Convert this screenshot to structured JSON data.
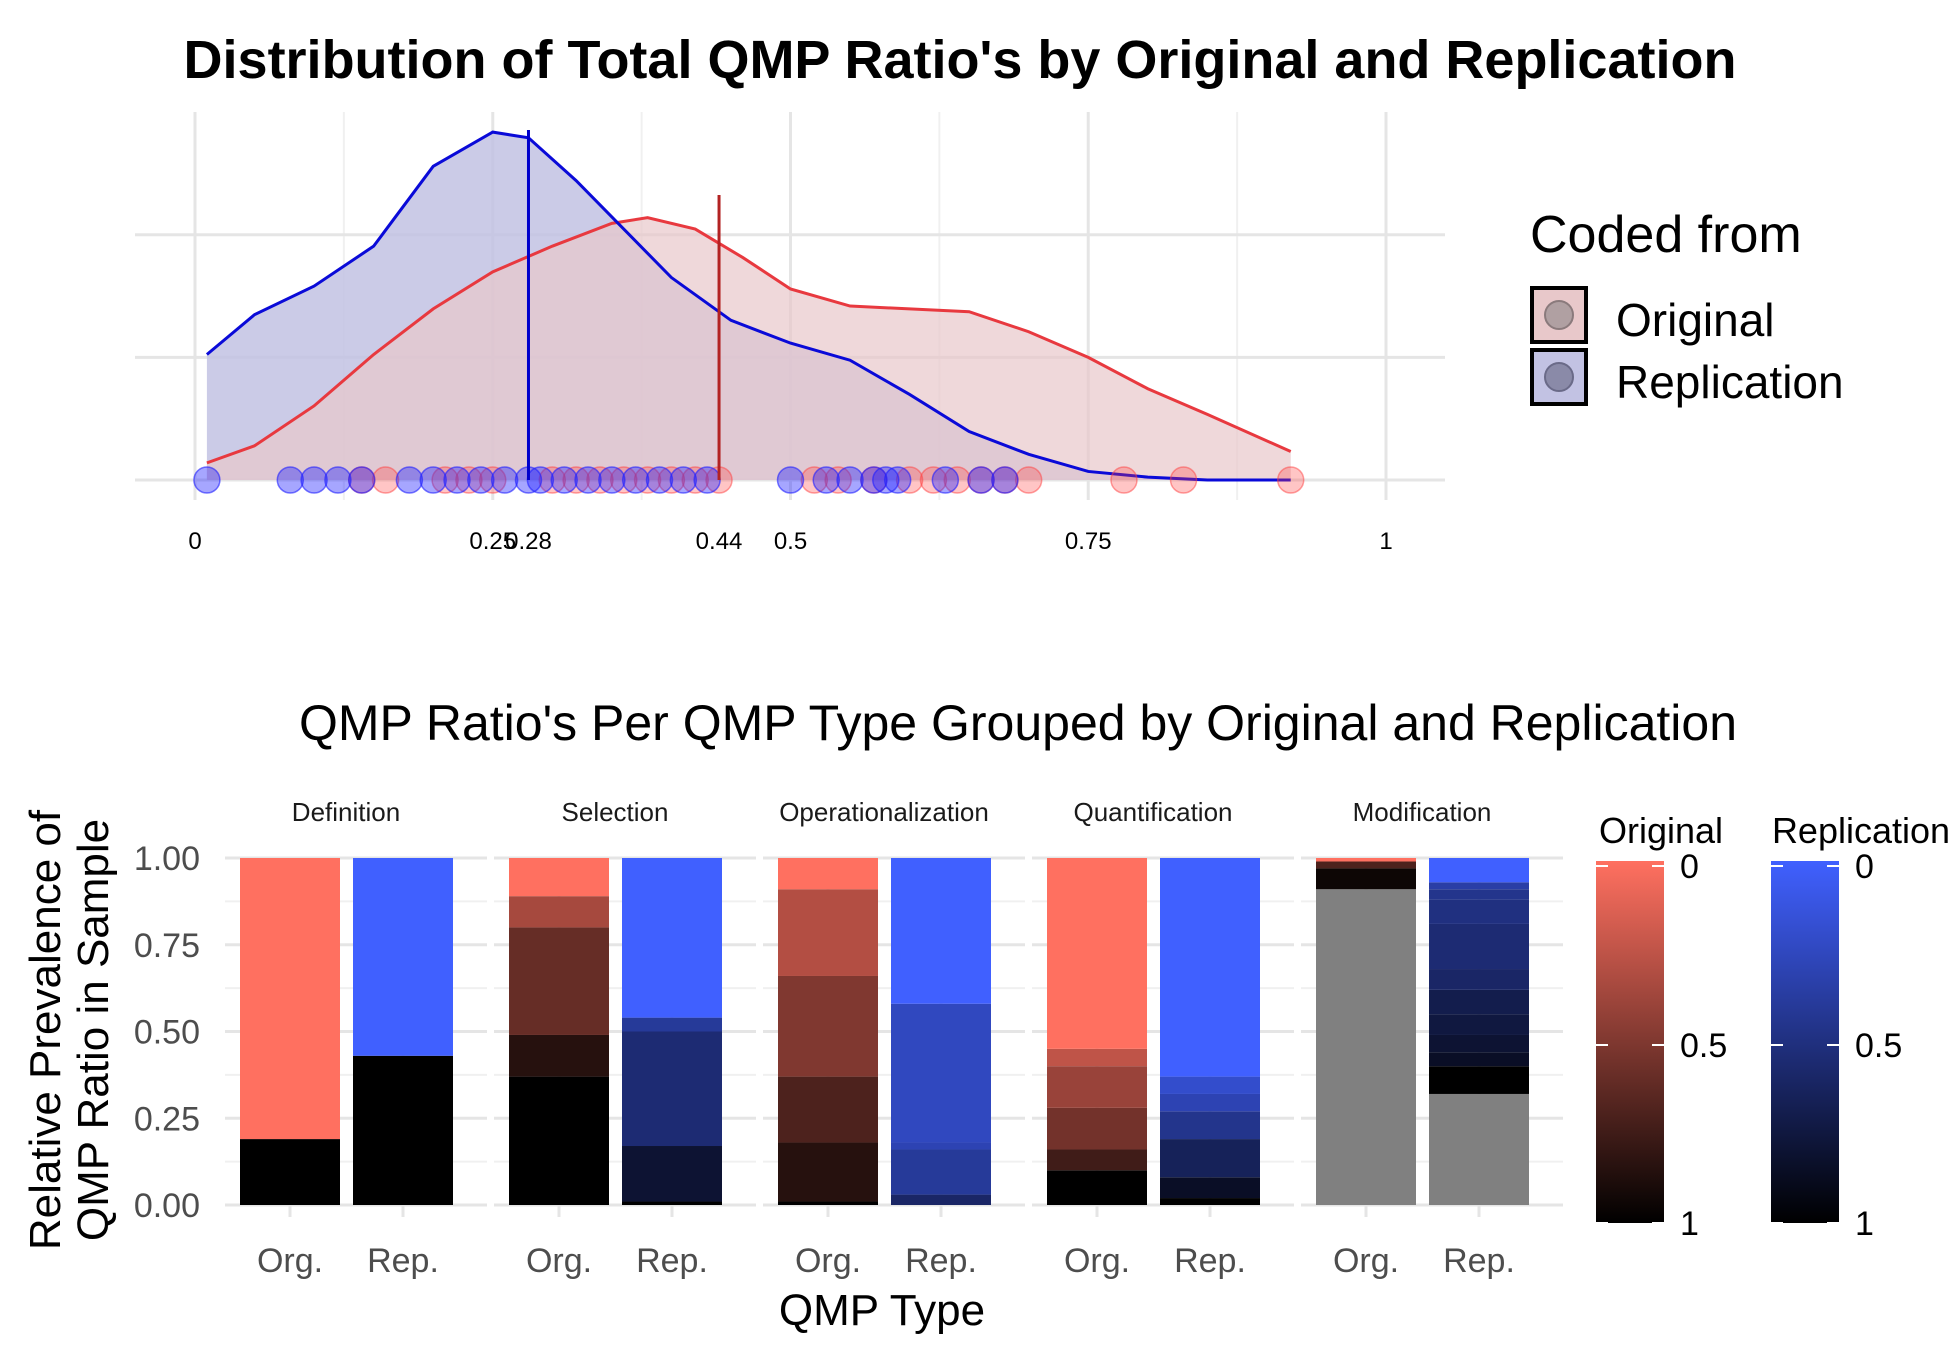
{
  "chart_data": [
    {
      "type": "area",
      "title": "Distribution of Total QMP Ratio's by Original and Replication",
      "xlim": [
        0,
        1
      ],
      "x_ticks": [
        "0",
        "0.25",
        "0.28",
        "0.44",
        "0.5",
        "0.75",
        "1"
      ],
      "x_tick_values": [
        0,
        0.25,
        0.28,
        0.44,
        0.5,
        0.75,
        1
      ],
      "ylabel": "",
      "xlabel": "",
      "grid": true,
      "legend": {
        "title": "Coded from",
        "position": "right",
        "entries": [
          "Original",
          "Replication"
        ]
      },
      "colors": {
        "original_line": "#e8393f",
        "original_fill": "#e8c8ca",
        "replication_line": "#0a0ad8",
        "replication_fill": "#c2c2e3",
        "overlap_fill": "#b8a8c8",
        "original_mean_line": "#b22222",
        "replication_mean_line": "#0000cc",
        "original_point": "#ff4040",
        "replication_point": "#2020ff"
      },
      "series": [
        {
          "name": "Original",
          "density": {
            "x": [
              0.01,
              0.05,
              0.1,
              0.15,
              0.2,
              0.25,
              0.3,
              0.35,
              0.38,
              0.42,
              0.46,
              0.5,
              0.55,
              0.6,
              0.65,
              0.7,
              0.75,
              0.8,
              0.85,
              0.92
            ],
            "y": [
              0.06,
              0.12,
              0.26,
              0.44,
              0.6,
              0.73,
              0.82,
              0.9,
              0.92,
              0.88,
              0.78,
              0.67,
              0.61,
              0.6,
              0.59,
              0.52,
              0.43,
              0.32,
              0.23,
              0.1
            ]
          },
          "mean": 0.44,
          "points": [
            0.14,
            0.16,
            0.21,
            0.23,
            0.25,
            0.3,
            0.32,
            0.34,
            0.36,
            0.38,
            0.4,
            0.42,
            0.44,
            0.52,
            0.54,
            0.57,
            0.6,
            0.62,
            0.64,
            0.66,
            0.68,
            0.7,
            0.78,
            0.83,
            0.92
          ]
        },
        {
          "name": "Replication",
          "density": {
            "x": [
              0.01,
              0.05,
              0.1,
              0.15,
              0.2,
              0.25,
              0.28,
              0.32,
              0.36,
              0.4,
              0.45,
              0.5,
              0.55,
              0.6,
              0.65,
              0.7,
              0.75,
              0.8,
              0.85,
              0.92
            ],
            "y": [
              0.44,
              0.58,
              0.68,
              0.82,
              1.1,
              1.22,
              1.2,
              1.05,
              0.88,
              0.71,
              0.56,
              0.48,
              0.42,
              0.3,
              0.17,
              0.09,
              0.03,
              0.01,
              0.0,
              0.0
            ]
          },
          "mean": 0.28,
          "points": [
            0.01,
            0.08,
            0.1,
            0.12,
            0.14,
            0.18,
            0.2,
            0.22,
            0.24,
            0.26,
            0.28,
            0.29,
            0.31,
            0.33,
            0.35,
            0.37,
            0.39,
            0.41,
            0.43,
            0.5,
            0.53,
            0.55,
            0.57,
            0.58,
            0.59,
            0.63,
            0.66,
            0.68
          ]
        }
      ]
    },
    {
      "type": "bar",
      "stacked": true,
      "title": "QMP Ratio's Per QMP Type Grouped by Original and Replication",
      "xlabel": "QMP Type",
      "ylabel": "Relative Prevalence of QMP Ratio in Sample",
      "ylim": [
        0,
        1
      ],
      "y_ticks": [
        "0.00",
        "0.25",
        "0.50",
        "0.75",
        "1.00"
      ],
      "y_tick_values": [
        0,
        0.25,
        0.5,
        0.75,
        1
      ],
      "categories": [
        "Org.",
        "Rep."
      ],
      "colorbars": [
        {
          "title": "Original",
          "low_color": "#000000",
          "high_color": "#ff7060",
          "labels": [
            "0",
            "0.5",
            "1"
          ]
        },
        {
          "title": "Replication",
          "low_color": "#000000",
          "high_color": "#4060ff",
          "labels": [
            "0",
            "0.5",
            "1"
          ]
        }
      ],
      "na_color": "#808080",
      "facets": [
        {
          "name": "Definition",
          "bars": [
            {
              "category": "Org.",
              "segments": [
                {
                  "ratio": 1,
                  "share": 0.19
                },
                {
                  "ratio": 0,
                  "share": 0.81
                }
              ]
            },
            {
              "category": "Rep.",
              "segments": [
                {
                  "ratio": 1,
                  "share": 0.43
                },
                {
                  "ratio": 0,
                  "share": 0.57
                }
              ]
            }
          ]
        },
        {
          "name": "Selection",
          "bars": [
            {
              "category": "Org.",
              "segments": [
                {
                  "ratio": 1,
                  "share": 0.37
                },
                {
                  "ratio": 0.85,
                  "share": 0.12
                },
                {
                  "ratio": 0.6,
                  "share": 0.31
                },
                {
                  "ratio": 0.35,
                  "share": 0.09
                },
                {
                  "ratio": 0,
                  "share": 0.11
                }
              ]
            },
            {
              "category": "Rep.",
              "segments": [
                {
                  "ratio": 1,
                  "share": 0.01
                },
                {
                  "ratio": 0.8,
                  "share": 0.16
                },
                {
                  "ratio": 0.55,
                  "share": 0.33
                },
                {
                  "ratio": 0.4,
                  "share": 0.04
                },
                {
                  "ratio": 0,
                  "share": 0.46
                }
              ]
            }
          ]
        },
        {
          "name": "Operationalization",
          "bars": [
            {
              "category": "Org.",
              "segments": [
                {
                  "ratio": 1,
                  "share": 0.01
                },
                {
                  "ratio": 0.85,
                  "share": 0.17
                },
                {
                  "ratio": 0.7,
                  "share": 0.19
                },
                {
                  "ratio": 0.5,
                  "share": 0.29
                },
                {
                  "ratio": 0.3,
                  "share": 0.25
                },
                {
                  "ratio": 0,
                  "share": 0.09
                }
              ]
            },
            {
              "category": "Rep.",
              "segments": [
                {
                  "ratio": 1,
                  "share": 0.0
                },
                {
                  "ratio": 0.6,
                  "share": 0.03
                },
                {
                  "ratio": 0.4,
                  "share": 0.13
                },
                {
                  "ratio": 0.3,
                  "share": 0.02
                },
                {
                  "ratio": 0.25,
                  "share": 0.4
                },
                {
                  "ratio": 0,
                  "share": 0.42
                }
              ]
            }
          ]
        },
        {
          "name": "Quantification",
          "bars": [
            {
              "category": "Org.",
              "segments": [
                {
                  "ratio": 1,
                  "share": 0.1
                },
                {
                  "ratio": 0.75,
                  "share": 0.06
                },
                {
                  "ratio": 0.55,
                  "share": 0.12
                },
                {
                  "ratio": 0.4,
                  "share": 0.12
                },
                {
                  "ratio": 0.25,
                  "share": 0.05
                },
                {
                  "ratio": 0,
                  "share": 0.55
                }
              ]
            },
            {
              "category": "Rep.",
              "segments": [
                {
                  "ratio": 1,
                  "share": 0.02
                },
                {
                  "ratio": 0.85,
                  "share": 0.06
                },
                {
                  "ratio": 0.65,
                  "share": 0.11
                },
                {
                  "ratio": 0.45,
                  "share": 0.08
                },
                {
                  "ratio": 0.3,
                  "share": 0.05
                },
                {
                  "ratio": 0.2,
                  "share": 0.05
                },
                {
                  "ratio": 0,
                  "share": 0.63
                }
              ]
            }
          ]
        },
        {
          "name": "Modification",
          "bars": [
            {
              "category": "Org.",
              "segments": [
                {
                  "ratio": null,
                  "share": 0.91
                },
                {
                  "ratio": 0.95,
                  "share": 0.06
                },
                {
                  "ratio": 0.7,
                  "share": 0.02
                },
                {
                  "ratio": 0.0,
                  "share": 0.01
                }
              ]
            },
            {
              "category": "Rep.",
              "segments": [
                {
                  "ratio": null,
                  "share": 0.32
                },
                {
                  "ratio": 1,
                  "share": 0.08
                },
                {
                  "ratio": 0.85,
                  "share": 0.04
                },
                {
                  "ratio": 0.8,
                  "share": 0.05
                },
                {
                  "ratio": 0.75,
                  "share": 0.06
                },
                {
                  "ratio": 0.7,
                  "share": 0.07
                },
                {
                  "ratio": 0.6,
                  "share": 0.06
                },
                {
                  "ratio": 0.55,
                  "share": 0.13
                },
                {
                  "ratio": 0.5,
                  "share": 0.07
                },
                {
                  "ratio": 0.45,
                  "share": 0.03
                },
                {
                  "ratio": 0.35,
                  "share": 0.02
                },
                {
                  "ratio": 0,
                  "share": 0.07
                }
              ]
            }
          ]
        }
      ]
    }
  ]
}
